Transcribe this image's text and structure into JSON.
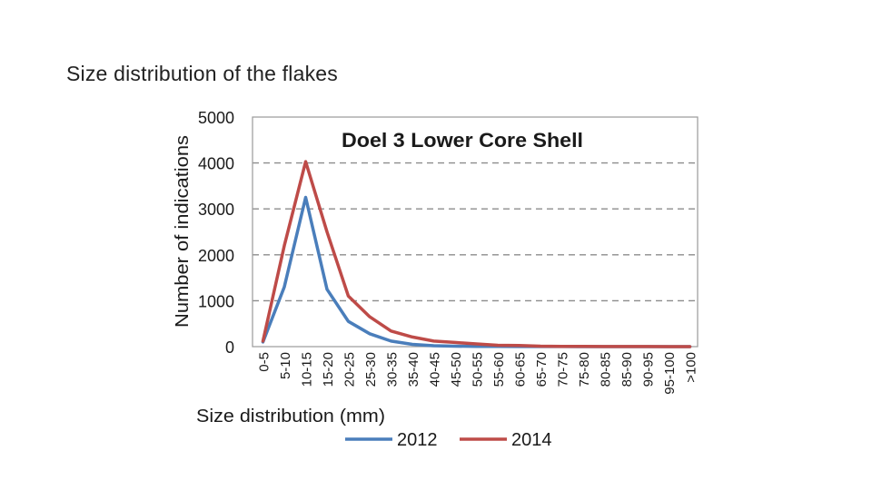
{
  "slide": {
    "title": "Size distribution of the flakes"
  },
  "chart_data": {
    "type": "line",
    "title": "Doel 3 Lower Core Shell",
    "xlabel": "Size distribution (mm)",
    "ylabel": "Number of indications",
    "ylim": [
      0,
      5000
    ],
    "yticks": [
      "0",
      "1000",
      "2000",
      "3000",
      "4000",
      "5000"
    ],
    "grid": true,
    "legend_position": "bottom",
    "categories": [
      "0-5",
      "5-10",
      "10-15",
      "15-20",
      "20-25",
      "25-30",
      "30-35",
      "35-40",
      "40-45",
      "45-50",
      "50-55",
      "55-60",
      "60-65",
      "65-70",
      "70-75",
      "75-80",
      "80-85",
      "85-90",
      "90-95",
      "95-100",
      ">100"
    ],
    "series": [
      {
        "name": "2012",
        "color": "#4a7ebb",
        "values": [
          100,
          1300,
          3250,
          1250,
          550,
          280,
          120,
          50,
          20,
          10,
          5,
          3,
          2,
          1,
          1,
          0,
          0,
          0,
          0,
          0,
          0
        ]
      },
      {
        "name": "2014",
        "color": "#be4b48",
        "values": [
          120,
          2200,
          4030,
          2500,
          1100,
          650,
          340,
          210,
          120,
          90,
          60,
          30,
          25,
          10,
          5,
          3,
          2,
          1,
          1,
          0,
          0
        ]
      }
    ]
  }
}
